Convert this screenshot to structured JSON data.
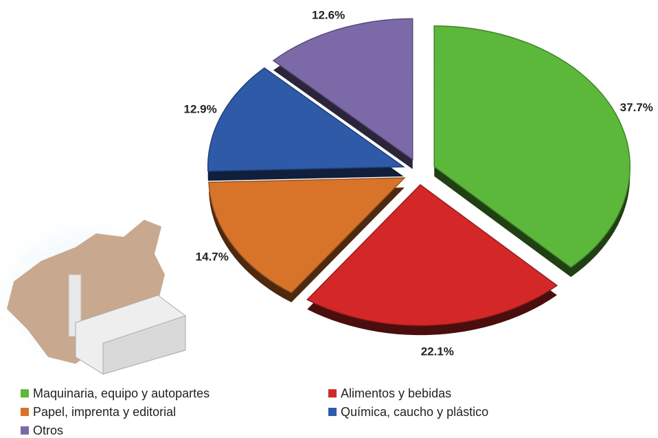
{
  "chart_data": {
    "type": "pie",
    "categories": [
      "Maquinaria, equipo y autopartes",
      "Alimentos y bebidas",
      "Papel, imprenta y editorial",
      "Química, caucho y plástico",
      "Otros"
    ],
    "values": [
      37.7,
      22.1,
      14.7,
      12.9,
      12.6
    ],
    "value_labels": [
      "37.7%",
      "22.1%",
      "14.7%",
      "12.9%",
      "12.6%"
    ],
    "colors": [
      "#5cb83a",
      "#d42828",
      "#d8742a",
      "#2f5aa8",
      "#7c6aa8"
    ]
  }
}
